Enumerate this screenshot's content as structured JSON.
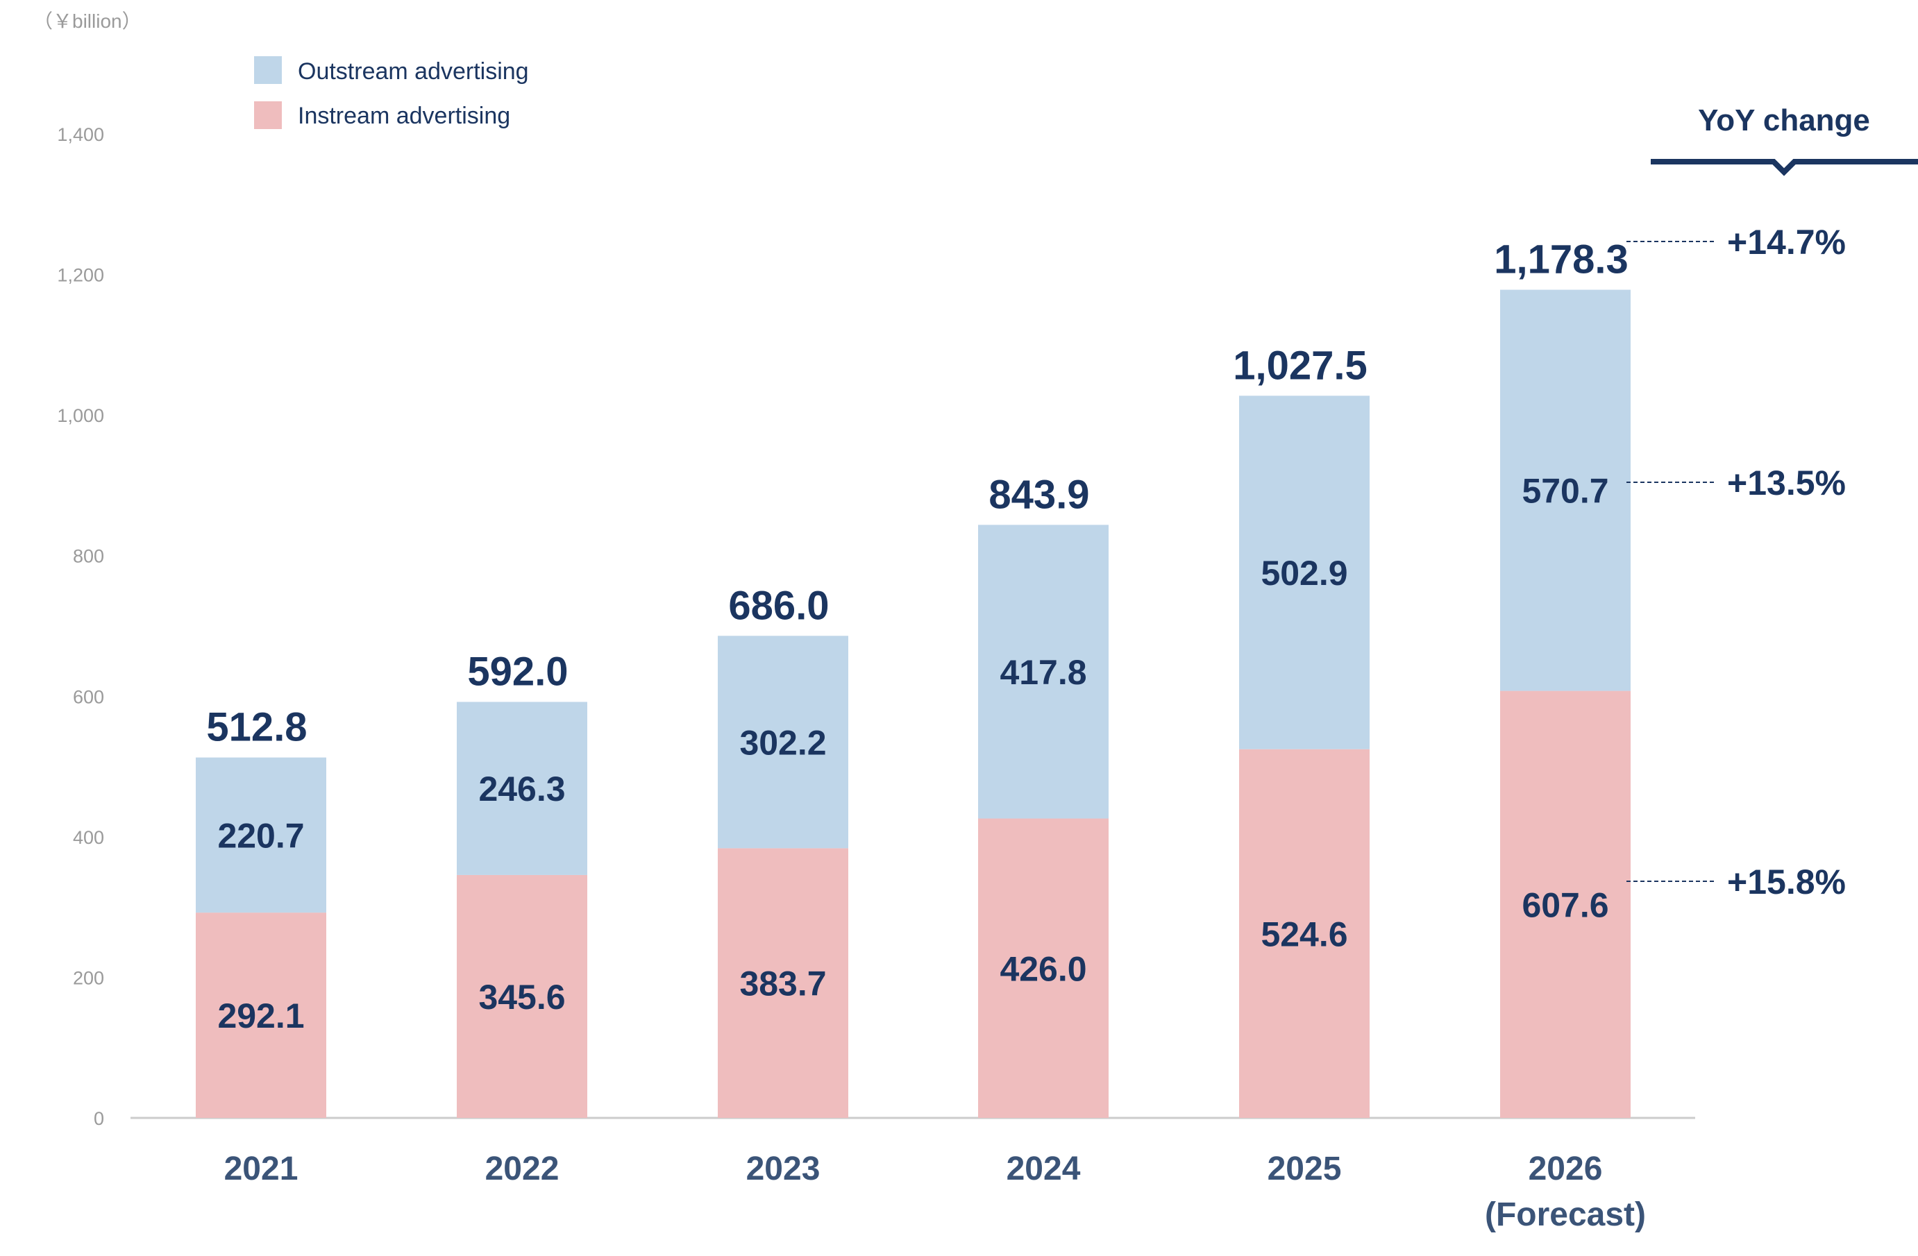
{
  "chart_data": {
    "type": "bar",
    "stacked": true,
    "unit_label": "（￥billion）",
    "categories": [
      "2021",
      "2022",
      "2023",
      "2024",
      "2025",
      "2026\n(Forecast)"
    ],
    "series": [
      {
        "name": "Instream advertising",
        "values": [
          292.1,
          345.6,
          383.7,
          426.0,
          524.6,
          607.6
        ],
        "labels": [
          "292.1",
          "345.6",
          "383.7",
          "426.0",
          "524.6",
          "607.6"
        ]
      },
      {
        "name": "Outstream advertising",
        "values": [
          220.7,
          246.3,
          302.2,
          417.8,
          502.9,
          570.7
        ],
        "labels": [
          "220.7",
          "246.3",
          "302.2",
          "417.8",
          "502.9",
          "570.7"
        ]
      }
    ],
    "totals": [
      512.8,
      592.0,
      686.0,
      843.9,
      1027.5,
      1178.3
    ],
    "total_labels": [
      "512.8",
      "592.0",
      "686.0",
      "843.9",
      "1,027.5",
      "1,178.3"
    ],
    "yticks": [
      0,
      200,
      400,
      600,
      800,
      1000,
      1200,
      1400
    ],
    "ytick_labels": [
      "0",
      "200",
      "400",
      "600",
      "800",
      "1,000",
      "1,200",
      "1,400"
    ],
    "ylim": [
      0,
      1400
    ],
    "grid": false,
    "legend": [
      "Outstream advertising",
      "Instream advertising"
    ],
    "legend_position": "top-left",
    "yoy": {
      "title": "YoY change",
      "total": "+14.7%",
      "outstream": "+13.5%",
      "instream": "+15.8%"
    },
    "colors": {
      "instream": "#EFBDBE",
      "outstream": "#BFD6E9",
      "text": "#1B3560",
      "axis": "#9A9A9A",
      "axis_line": "#CCCCCC"
    }
  }
}
